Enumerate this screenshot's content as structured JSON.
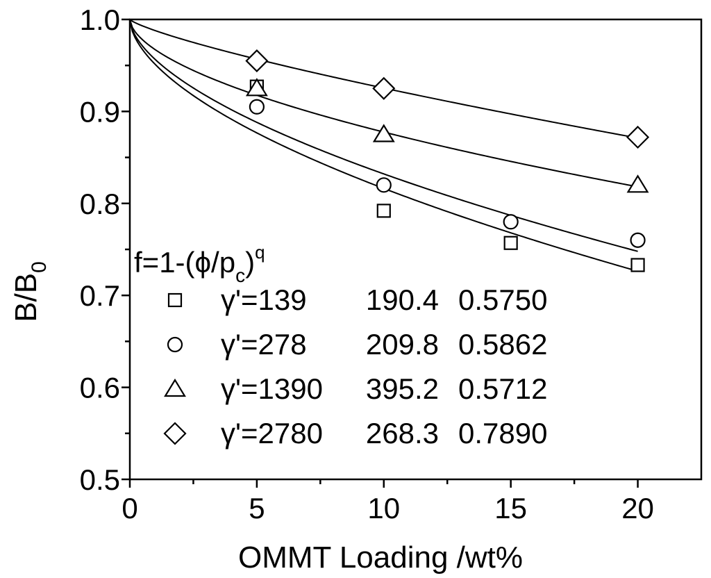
{
  "chart_data": {
    "type": "scatter",
    "title": "",
    "xlabel": "OMMT Loading    /wt%",
    "ylabel_main": "B/B",
    "ylabel_sub": "0",
    "xlim": [
      0,
      22.5
    ],
    "ylim": [
      0.5,
      1.0
    ],
    "xticks": [
      0,
      5,
      10,
      15,
      20
    ],
    "yticks": [
      0.5,
      0.6,
      0.7,
      0.8,
      0.9,
      1.0
    ],
    "xtick_labels": [
      "0",
      "5",
      "10",
      "15",
      "20"
    ],
    "ytick_labels": [
      "0.5",
      "0.6",
      "0.7",
      "0.8",
      "0.9",
      "1.0"
    ],
    "fit_formula": {
      "base": "f=1-(ϕ/p",
      "sub": "c",
      "close": ")",
      "sup": "q"
    },
    "series": [
      {
        "name": "γ'=139",
        "marker": "square",
        "p_c": "190.4",
        "q": "0.5750",
        "x": [
          5,
          10,
          15,
          20
        ],
        "y": [
          0.927,
          0.792,
          0.757,
          0.733
        ],
        "fit": {
          "pc": 190.4,
          "q": 0.575
        }
      },
      {
        "name": "γ'=278",
        "marker": "circle",
        "p_c": "209.8",
        "q": "0.5862",
        "x": [
          5,
          10,
          15,
          20
        ],
        "y": [
          0.905,
          0.82,
          0.78,
          0.76
        ],
        "fit": {
          "pc": 209.8,
          "q": 0.5862
        }
      },
      {
        "name": "γ'=1390",
        "marker": "triangle",
        "p_c": "395.2",
        "q": "0.5712",
        "x": [
          5,
          10,
          20
        ],
        "y": [
          0.925,
          0.875,
          0.82
        ],
        "fit": {
          "pc": 395.2,
          "q": 0.5712
        }
      },
      {
        "name": "γ'=2780",
        "marker": "diamond",
        "p_c": "268.3",
        "q": "0.7890",
        "x": [
          5,
          10,
          20
        ],
        "y": [
          0.955,
          0.925,
          0.872
        ],
        "fit": {
          "pc": 268.3,
          "q": 0.789
        }
      }
    ],
    "legend_position": "bottom-left"
  }
}
